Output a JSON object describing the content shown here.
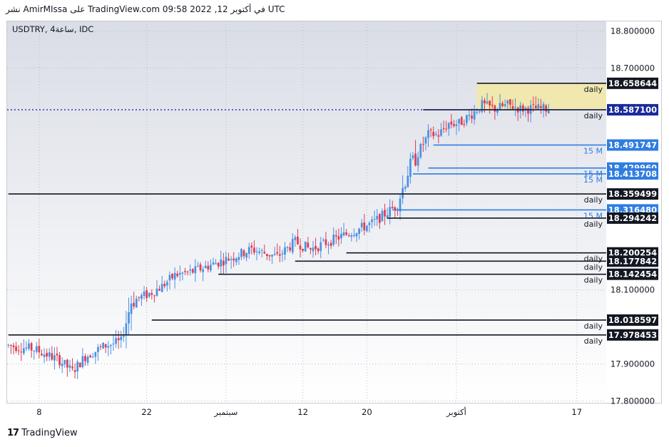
{
  "header": {
    "text": "نشر AmirMIssa على TradingView.com 09:58 2022 ,12 في أكتوبر UTC"
  },
  "footer": {
    "brand": "TradingView",
    "logo_icon": "tradingview-logo-icon"
  },
  "chart_data": {
    "type": "candlestick",
    "symbol_label": "USDTRY, 4ساعة, IDC",
    "y_ticks": [
      17.8,
      17.9,
      18.1,
      18.7,
      18.8
    ],
    "y_tick_labels": [
      "17.800000",
      "17.900000",
      "18.100000",
      "18.700000",
      "18.800000"
    ],
    "ylim": [
      17.795,
      18.826
    ],
    "x_ticks": [
      {
        "label": "8",
        "index": 12
      },
      {
        "label": "22",
        "index": 54
      },
      {
        "label": "سبتمبر",
        "index": 85
      },
      {
        "label": "12",
        "index": 115
      },
      {
        "label": "20",
        "index": 140
      },
      {
        "label": "أكتوبر",
        "index": 175
      },
      {
        "label": "17",
        "index": 222
      }
    ],
    "candle_count": 234,
    "last_candle_index": 211,
    "current_price": {
      "value": 18.5871,
      "label": "18.587100"
    },
    "zone": {
      "from": 18.5871,
      "to": 18.658644,
      "label": "daily",
      "start_index": 183
    },
    "levels": [
      {
        "value": 18.658644,
        "label": "18.658644",
        "tag": "daily",
        "tf": "daily",
        "start_index": 183
      },
      {
        "value": 18.5871,
        "label": "18.587100",
        "tag": "daily",
        "tf": "daily",
        "start_index": 162
      },
      {
        "value": 18.491747,
        "label": "18.491747",
        "tag": "15 M",
        "tf": "15m",
        "start_index": 166
      },
      {
        "value": 18.4296,
        "label": "18.429960",
        "tag": "15 M",
        "tf": "15m",
        "start_index": 164
      },
      {
        "value": 18.413708,
        "label": "18.413708",
        "tag": "15 M",
        "tf": "15m",
        "start_index": 158
      },
      {
        "value": 18.359499,
        "label": "18.359499",
        "tag": "daily",
        "tf": "daily",
        "start_index": 0
      },
      {
        "value": 18.31648,
        "label": "18.316480",
        "tag": "15 M",
        "tf": "15m",
        "start_index": 150
      },
      {
        "value": 18.294242,
        "label": "18.294242",
        "tag": "daily",
        "tf": "daily",
        "start_index": 148
      },
      {
        "value": 18.200254,
        "label": "18.200254",
        "tag": "daily",
        "tf": "daily",
        "start_index": 132
      },
      {
        "value": 18.177842,
        "label": "18.177842",
        "tag": "daily",
        "tf": "daily",
        "start_index": 112
      },
      {
        "value": 18.142454,
        "label": "18.142454",
        "tag": "daily",
        "tf": "daily",
        "start_index": 82
      },
      {
        "value": 18.018597,
        "label": "18.018597",
        "tag": "daily",
        "tf": "daily",
        "start_index": 56
      },
      {
        "value": 17.978453,
        "label": "17.978453",
        "tag": "daily",
        "tf": "daily",
        "start_index": 0
      }
    ],
    "colors": {
      "up": "#4a90e2",
      "down": "#e23a4e",
      "level": "#131722",
      "m15": "#2f7de1",
      "zone": "#f3e9a4",
      "price_line": "#1a2a9c"
    },
    "close_anchors": [
      [
        0,
        17.95
      ],
      [
        10,
        17.94
      ],
      [
        20,
        17.91
      ],
      [
        25,
        17.88
      ],
      [
        30,
        17.92
      ],
      [
        38,
        17.95
      ],
      [
        44,
        17.96
      ],
      [
        48,
        18.07
      ],
      [
        55,
        18.09
      ],
      [
        60,
        18.11
      ],
      [
        65,
        18.14
      ],
      [
        72,
        18.15
      ],
      [
        80,
        18.17
      ],
      [
        88,
        18.19
      ],
      [
        95,
        18.21
      ],
      [
        105,
        18.19
      ],
      [
        112,
        18.23
      ],
      [
        118,
        18.21
      ],
      [
        125,
        18.23
      ],
      [
        135,
        18.26
      ],
      [
        142,
        18.28
      ],
      [
        148,
        18.31
      ],
      [
        152,
        18.33
      ],
      [
        156,
        18.42
      ],
      [
        160,
        18.47
      ],
      [
        164,
        18.52
      ],
      [
        168,
        18.52
      ],
      [
        172,
        18.55
      ],
      [
        176,
        18.55
      ],
      [
        180,
        18.57
      ],
      [
        185,
        18.6
      ],
      [
        190,
        18.59
      ],
      [
        195,
        18.6
      ],
      [
        200,
        18.59
      ],
      [
        205,
        18.59
      ],
      [
        211,
        18.59
      ]
    ]
  }
}
